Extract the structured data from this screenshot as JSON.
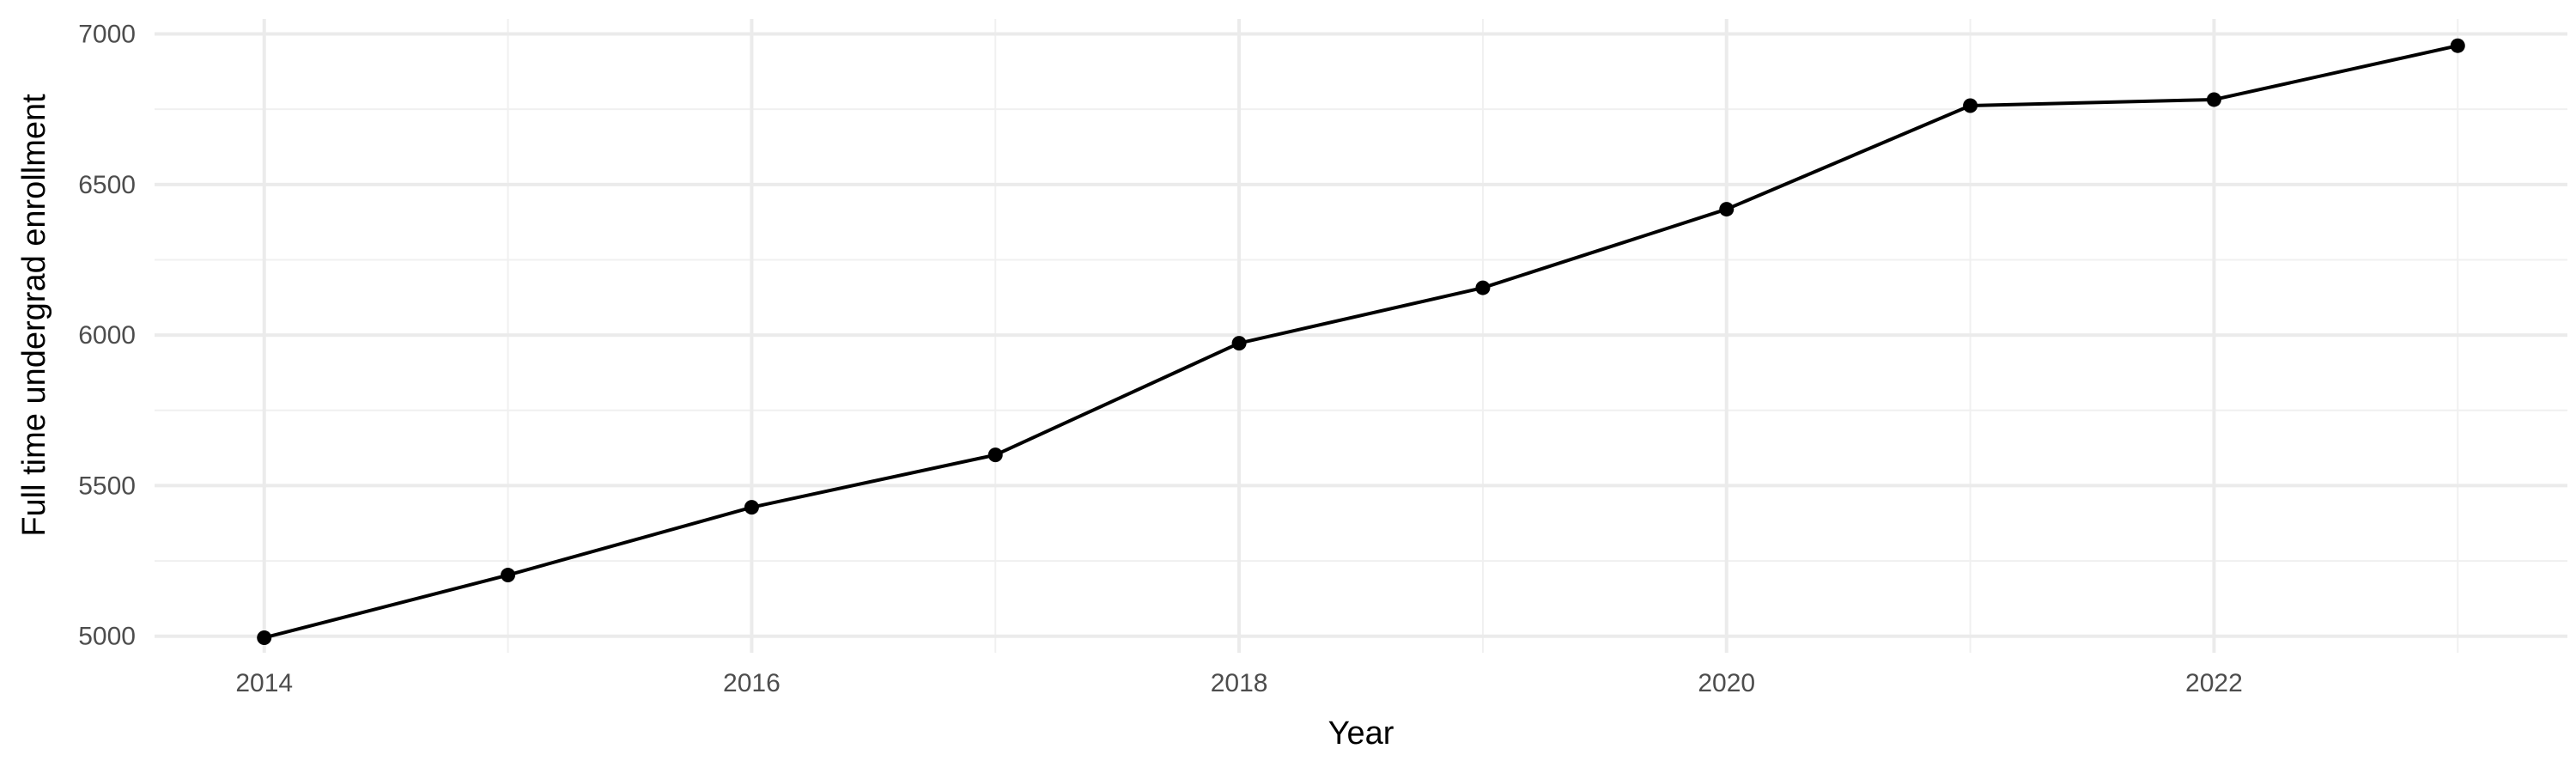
{
  "chart_data": {
    "type": "line",
    "title": "",
    "xlabel": "Year",
    "ylabel": "Full time undergrad enrollment",
    "xlim": [
      2013.55,
      2023.45
    ],
    "ylim": [
      4945,
      7050
    ],
    "x_ticks": [
      2014,
      2016,
      2018,
      2020,
      2022
    ],
    "x_tick_labels": [
      "2014",
      "2016",
      "2018",
      "2020",
      "2022"
    ],
    "y_ticks": [
      5000,
      5500,
      6000,
      6500,
      7000
    ],
    "y_tick_labels": [
      "5000",
      "5500",
      "6000",
      "6500",
      "7000"
    ],
    "grid": true,
    "legend": "none",
    "series": [
      {
        "x": [
          2014,
          2015,
          2016,
          2017,
          2018,
          2019,
          2020,
          2021,
          2022,
          2023
        ],
        "values": [
          4995,
          5203,
          5428,
          5602,
          5973,
          6157,
          6418,
          6762,
          6782,
          6961
        ],
        "color": "#000000"
      }
    ]
  }
}
